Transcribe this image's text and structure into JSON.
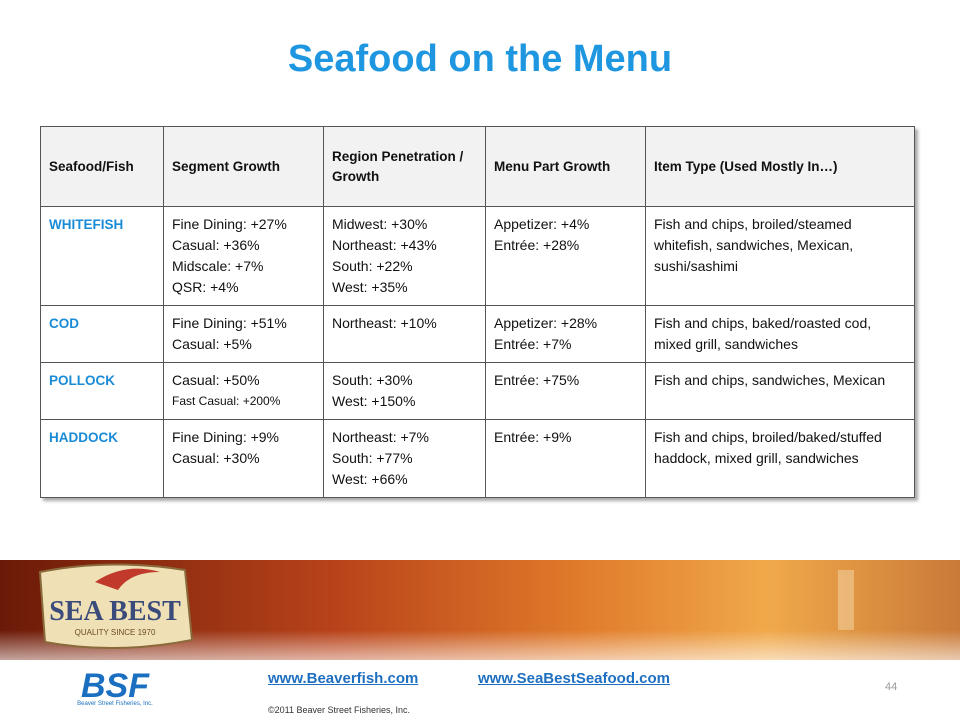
{
  "title": "Seafood on the Menu",
  "table": {
    "header": [
      "Seafood/Fish",
      "Segment Growth",
      "Region Penetration / Growth",
      "Menu Part Growth",
      "Item Type (Used Mostly In…)"
    ],
    "rows": [
      {
        "name": "WHITEFISH",
        "segment": [
          "Fine Dining: +27%",
          "Casual: +36%",
          "Midscale: +7%",
          "QSR: +4%"
        ],
        "region": [
          "Midwest: +30%",
          "Northeast: +43%",
          "South: +22%",
          "West: +35%"
        ],
        "menu": [
          "Appetizer: +4%",
          "Entrée: +28%"
        ],
        "items": "Fish and chips, broiled/steamed whitefish, sandwiches, Mexican, sushi/sashimi"
      },
      {
        "name": "COD",
        "segment": [
          "Fine Dining: +51%",
          "Casual: +5%"
        ],
        "region": [
          "Northeast: +10%"
        ],
        "menu": [
          "Appetizer: +28%",
          "Entrée: +7%"
        ],
        "items": "Fish and chips, baked/roasted cod, mixed grill, sandwiches"
      },
      {
        "name": "POLLOCK",
        "segment": [
          "Casual: +50%",
          "Fast Casual: +200%"
        ],
        "region": [
          "South: +30%",
          "West: +150%"
        ],
        "menu": [
          "Entrée: +75%"
        ],
        "items": "Fish and chips, sandwiches, Mexican"
      },
      {
        "name": "HADDOCK",
        "segment": [
          "Fine Dining: +9%",
          "Casual: +30%"
        ],
        "region": [
          "Northeast: +7%",
          "South: +77%",
          "West: +66%"
        ],
        "menu": [
          "Entrée: +9%"
        ],
        "items": "Fish and chips, broiled/baked/stuffed haddock, mixed grill, sandwiches"
      }
    ]
  },
  "footer": {
    "logo": "SEA BEST",
    "logo_tagline": "QUALITY SINCE 1970",
    "bsf": "BSF",
    "bsf_name": "Beaver Street Fisheries, Inc.",
    "links": [
      "www.Beaverfish.com",
      "www.SeaBestSeafood.com"
    ],
    "copyright": "©2011 Beaver Street Fisheries, Inc.",
    "page": "44"
  }
}
